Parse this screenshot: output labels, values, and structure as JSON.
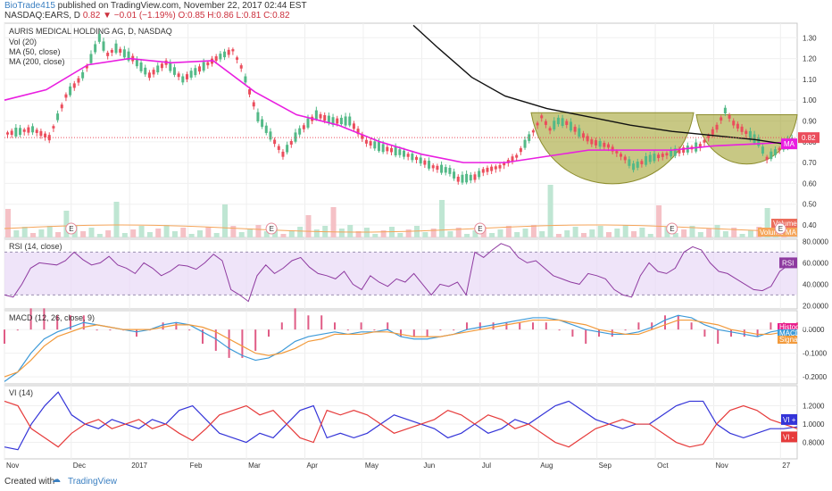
{
  "header": {
    "author": "BioTrade415",
    "published_text": "published on TradingView.com, November 22, 2017 02:44 EST",
    "symbol": "NASDAQ:EARS, D",
    "price": "0.82",
    "change": "−0.01 (−1.19%)",
    "ohlc": "O:0.85 H:0.86 L:0.81 C:0.82"
  },
  "footer": {
    "created_with": "Created with",
    "brand": "TradingView"
  },
  "colors": {
    "up": "#53b987",
    "down": "#eb4d5c",
    "ma50": "#e91ee0",
    "ma200": "#111111",
    "cup": "#a3a332",
    "rsi": "#8e3aa0",
    "rsi_band": "#e8d8f7",
    "macd": "#3d9ad8",
    "signal": "#f29a3b",
    "vi_plus": "#3434d8",
    "vi_minus": "#e63b3b"
  },
  "chart_data": [
    {
      "type": "candlestick",
      "title": "AURIS MEDICAL HOLDING AG, D, NASDAQ",
      "legend": [
        "Vol (20)",
        "MA (50, close)",
        "MA (200, close)"
      ],
      "y_ticks": [
        "1.30",
        "1.20",
        "1.10",
        "1.00",
        "0.90",
        "0.80",
        "0.70",
        "0.60",
        "0.50",
        "0.40"
      ],
      "ylim": [
        0.34,
        1.37
      ],
      "x_ticks": [
        "Nov",
        "Dec",
        "2017",
        "Feb",
        "Mar",
        "Apr",
        "May",
        "Jun",
        "Jul",
        "Aug",
        "Sep",
        "Oct",
        "Nov",
        "27"
      ],
      "last_price": "0.82",
      "tags": [
        "MA",
        "Volume",
        "Volume MA"
      ],
      "event_markers": [
        "E",
        "E",
        "E",
        "E",
        "E"
      ],
      "price_path": [
        [
          0,
          0.84
        ],
        [
          3,
          0.86
        ],
        [
          5,
          0.82
        ],
        [
          7,
          1.02
        ],
        [
          9,
          1.12
        ],
        [
          10,
          1.2
        ],
        [
          11,
          1.3
        ],
        [
          12,
          1.22
        ],
        [
          13,
          1.25
        ],
        [
          15,
          1.2
        ],
        [
          17,
          1.12
        ],
        [
          19,
          1.18
        ],
        [
          21,
          1.1
        ],
        [
          23,
          1.15
        ],
        [
          25,
          1.2
        ],
        [
          27,
          1.24
        ],
        [
          28,
          1.16
        ],
        [
          30,
          0.92
        ],
        [
          32,
          0.8
        ],
        [
          33,
          0.74
        ],
        [
          35,
          0.85
        ],
        [
          37,
          0.93
        ],
        [
          39,
          0.9
        ],
        [
          41,
          0.9
        ],
        [
          43,
          0.8
        ],
        [
          45,
          0.77
        ],
        [
          47,
          0.75
        ],
        [
          49,
          0.72
        ],
        [
          51,
          0.68
        ],
        [
          53,
          0.66
        ],
        [
          54,
          0.62
        ],
        [
          56,
          0.63
        ],
        [
          57,
          0.66
        ],
        [
          59,
          0.68
        ],
        [
          61,
          0.73
        ],
        [
          63,
          0.85
        ],
        [
          64,
          0.92
        ],
        [
          65,
          0.86
        ],
        [
          66,
          0.9
        ],
        [
          67,
          0.89
        ],
        [
          68,
          0.86
        ],
        [
          70,
          0.8
        ],
        [
          72,
          0.78
        ],
        [
          74,
          0.72
        ],
        [
          75,
          0.68
        ],
        [
          77,
          0.72
        ],
        [
          79,
          0.74
        ],
        [
          81,
          0.76
        ],
        [
          83,
          0.78
        ],
        [
          85,
          0.87
        ],
        [
          86,
          0.95
        ],
        [
          87,
          0.89
        ],
        [
          88,
          0.86
        ],
        [
          89,
          0.83
        ],
        [
          90,
          0.8
        ],
        [
          91,
          0.72
        ],
        [
          92,
          0.75
        ],
        [
          93,
          0.78
        ],
        [
          94,
          0.8
        ],
        [
          95,
          0.82
        ]
      ],
      "ma50_path": [
        [
          0,
          1.0
        ],
        [
          5,
          1.05
        ],
        [
          10,
          1.17
        ],
        [
          15,
          1.2
        ],
        [
          20,
          1.18
        ],
        [
          25,
          1.19
        ],
        [
          30,
          1.04
        ],
        [
          35,
          0.93
        ],
        [
          40,
          0.88
        ],
        [
          45,
          0.8
        ],
        [
          50,
          0.74
        ],
        [
          55,
          0.7
        ],
        [
          60,
          0.7
        ],
        [
          65,
          0.73
        ],
        [
          70,
          0.76
        ],
        [
          75,
          0.76
        ],
        [
          80,
          0.76
        ],
        [
          85,
          0.78
        ],
        [
          90,
          0.79
        ],
        [
          95,
          0.8
        ]
      ],
      "ma200_path": [
        [
          49,
          1.36
        ],
        [
          52,
          1.25
        ],
        [
          56,
          1.11
        ],
        [
          60,
          1.02
        ],
        [
          65,
          0.96
        ],
        [
          70,
          0.92
        ],
        [
          75,
          0.88
        ],
        [
          80,
          0.85
        ],
        [
          85,
          0.83
        ],
        [
          90,
          0.81
        ],
        [
          95,
          0.78
        ]
      ],
      "cup_left_rim": 0.94,
      "cup_right_rim": 0.93
    },
    {
      "type": "line",
      "title": "RSI (14, close)",
      "y_ticks": [
        "80.0000",
        "60.0000",
        "40.0000",
        "20.0000"
      ],
      "ylim": [
        17,
        82
      ],
      "band": [
        30,
        70
      ],
      "last_value_tag": "RSI",
      "values": [
        30,
        28,
        40,
        55,
        60,
        59,
        58,
        62,
        70,
        63,
        58,
        60,
        66,
        58,
        55,
        50,
        60,
        55,
        48,
        52,
        58,
        57,
        54,
        60,
        68,
        62,
        35,
        30,
        24,
        48,
        58,
        50,
        55,
        62,
        65,
        56,
        50,
        48,
        45,
        52,
        40,
        35,
        48,
        42,
        38,
        45,
        42,
        50,
        40,
        30,
        40,
        38,
        42,
        30,
        70,
        65,
        72,
        78,
        75,
        65,
        60,
        62,
        55,
        48,
        45,
        42,
        40,
        50,
        48,
        45,
        35,
        30,
        28,
        48,
        60,
        52,
        50,
        55,
        70,
        75,
        72,
        60,
        52,
        50,
        45,
        40,
        35,
        34,
        38,
        52,
        58,
        60
      ]
    },
    {
      "type": "line",
      "title": "MACD (12, 26, close, 9)",
      "y_ticks": [
        "0.0000",
        "-0.1000",
        "-0.2000"
      ],
      "ylim": [
        -0.23,
        0.08
      ],
      "tags": [
        "Histogram",
        "MACD",
        "Signal"
      ],
      "series": [
        {
          "name": "MACD",
          "values": [
            -0.22,
            -0.18,
            -0.1,
            -0.04,
            -0.01,
            0.01,
            0.03,
            0.02,
            0.01,
            0.0,
            -0.01,
            0.0,
            0.02,
            0.03,
            0.02,
            -0.01,
            -0.04,
            -0.08,
            -0.11,
            -0.13,
            -0.12,
            -0.09,
            -0.05,
            -0.03,
            -0.02,
            -0.01,
            -0.02,
            -0.01,
            -0.01,
            0.0,
            -0.03,
            -0.04,
            -0.04,
            -0.03,
            -0.02,
            0.0,
            0.01,
            0.02,
            0.03,
            0.04,
            0.05,
            0.05,
            0.04,
            0.02,
            0.0,
            -0.01,
            -0.02,
            -0.02,
            -0.01,
            0.01,
            0.04,
            0.06,
            0.05,
            0.02,
            0.0,
            -0.01,
            -0.02,
            -0.03,
            -0.01,
            0.0,
            0.01
          ]
        },
        {
          "name": "Signal",
          "values": [
            -0.2,
            -0.18,
            -0.13,
            -0.07,
            -0.03,
            -0.01,
            0.01,
            0.02,
            0.01,
            0.0,
            0.0,
            0.0,
            0.01,
            0.02,
            0.02,
            0.01,
            -0.01,
            -0.04,
            -0.07,
            -0.1,
            -0.11,
            -0.1,
            -0.08,
            -0.05,
            -0.04,
            -0.02,
            -0.02,
            -0.02,
            -0.01,
            -0.01,
            -0.02,
            -0.03,
            -0.03,
            -0.03,
            -0.02,
            -0.01,
            0.0,
            0.01,
            0.02,
            0.03,
            0.04,
            0.04,
            0.04,
            0.03,
            0.02,
            0.0,
            -0.01,
            -0.02,
            -0.02,
            0.0,
            0.02,
            0.04,
            0.04,
            0.03,
            0.02,
            0.0,
            -0.01,
            -0.02,
            -0.02,
            -0.01,
            0.0
          ]
        }
      ]
    },
    {
      "type": "line",
      "title": "VI (14)",
      "y_ticks": [
        "1.2000",
        "1.0000",
        "0.8000"
      ],
      "ylim": [
        0.62,
        1.42
      ],
      "tags": [
        "VI +",
        "VI -"
      ],
      "series": [
        {
          "name": "VI +",
          "values": [
            0.75,
            0.72,
            1.0,
            1.2,
            1.35,
            1.1,
            1.0,
            0.95,
            1.05,
            1.0,
            0.95,
            1.05,
            1.0,
            1.15,
            1.2,
            1.05,
            0.9,
            0.85,
            0.8,
            0.9,
            0.85,
            1.0,
            1.15,
            1.2,
            0.85,
            0.9,
            0.85,
            0.9,
            1.0,
            1.1,
            1.05,
            1.0,
            0.95,
            0.85,
            0.9,
            1.0,
            0.9,
            0.95,
            1.05,
            1.0,
            1.1,
            1.2,
            1.25,
            1.15,
            1.05,
            1.0,
            0.95,
            1.0,
            1.0,
            1.1,
            1.2,
            1.25,
            1.25,
            1.0,
            0.9,
            0.85,
            0.9,
            0.95,
            0.95,
            0.97
          ]
        },
        {
          "name": "VI -",
          "values": [
            1.25,
            1.2,
            0.95,
            0.85,
            0.75,
            0.9,
            1.0,
            1.05,
            0.95,
            1.0,
            1.05,
            0.95,
            1.0,
            0.9,
            0.82,
            0.95,
            1.1,
            1.15,
            1.2,
            1.1,
            1.15,
            1.0,
            0.85,
            0.8,
            1.15,
            1.1,
            1.15,
            1.1,
            1.0,
            0.9,
            0.95,
            1.0,
            1.05,
            1.15,
            1.1,
            1.0,
            1.1,
            1.05,
            0.95,
            1.0,
            0.9,
            0.8,
            0.75,
            0.85,
            0.95,
            1.0,
            1.05,
            1.0,
            1.0,
            0.9,
            0.8,
            0.75,
            0.78,
            1.0,
            1.15,
            1.2,
            1.15,
            1.05,
            1.0,
            0.95
          ]
        }
      ]
    }
  ]
}
